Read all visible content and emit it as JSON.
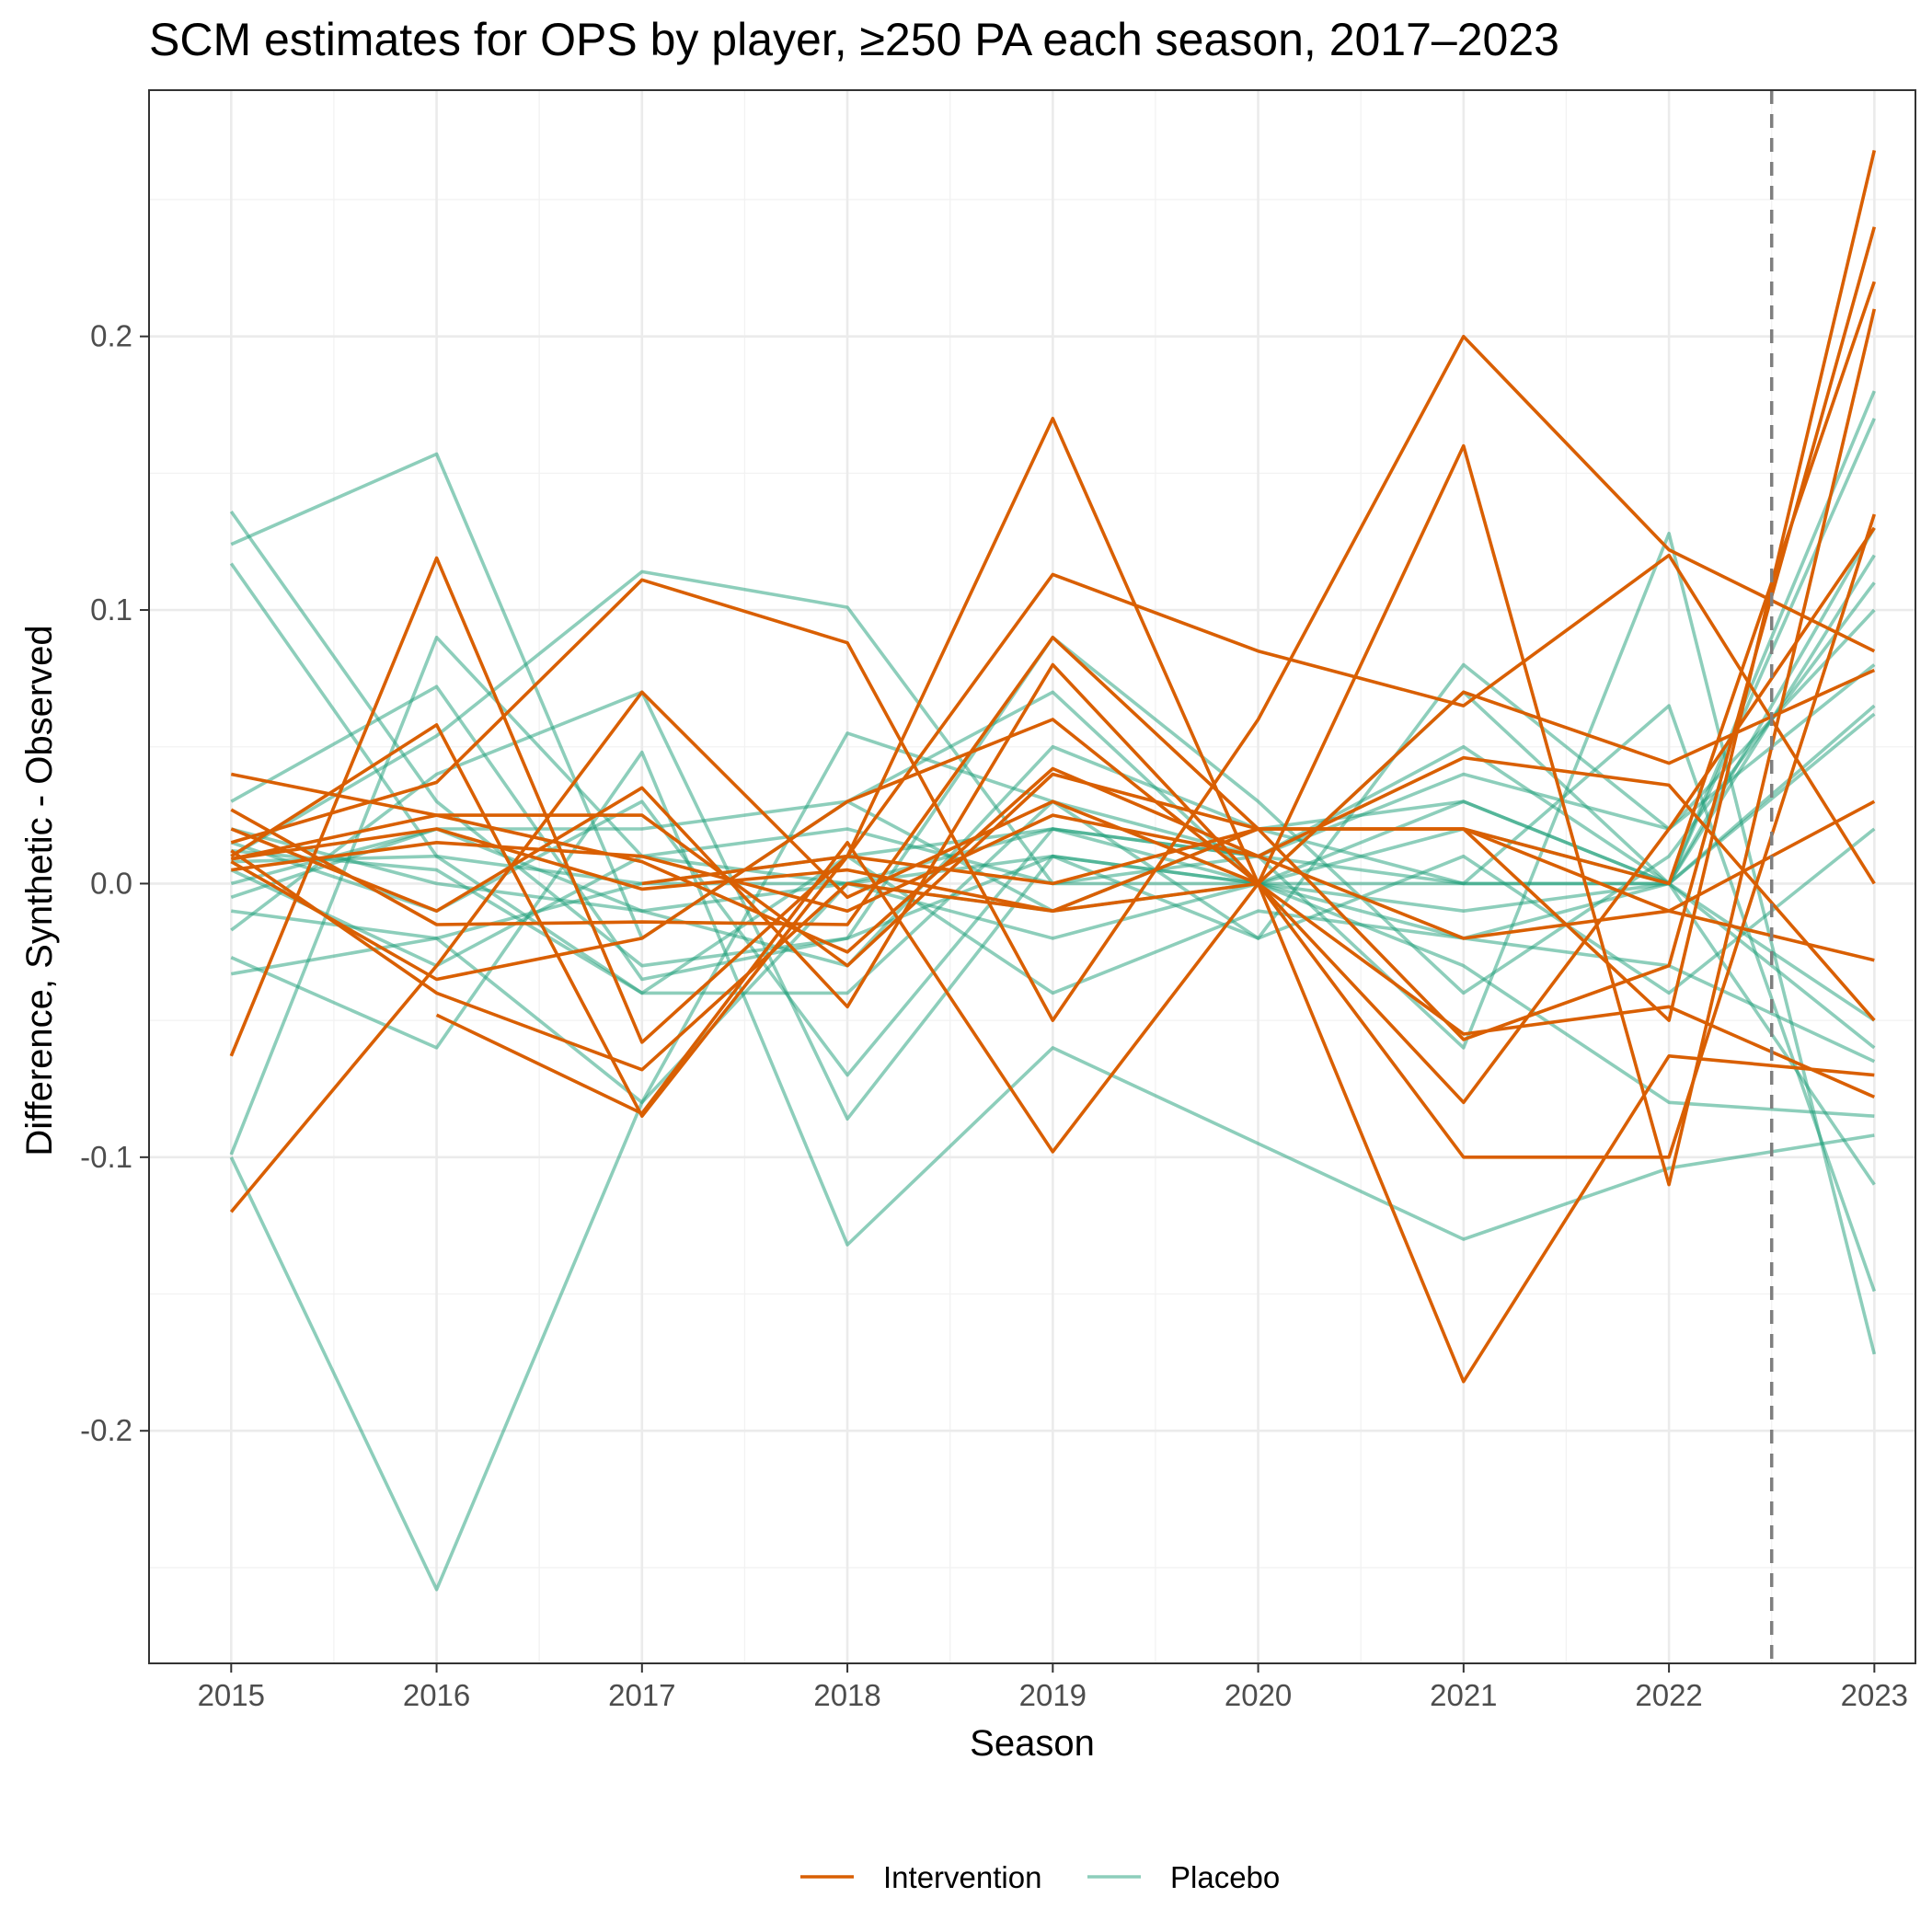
{
  "chart_data": {
    "type": "line",
    "title": "SCM estimates for OPS by player, ≥250 PA each season, 2017–2023",
    "xlabel": "Season",
    "ylabel": "Difference, Synthetic - Observed",
    "x": [
      2015,
      2016,
      2017,
      2018,
      2019,
      2020,
      2021,
      2022,
      2023
    ],
    "x_ticks": [
      "2015",
      "2016",
      "2017",
      "2018",
      "2019",
      "2020",
      "2021",
      "2022",
      "2023"
    ],
    "y_ticks": [
      {
        "value": -0.2,
        "label": "-0.2"
      },
      {
        "value": -0.1,
        "label": "-0.1"
      },
      {
        "value": 0.0,
        "label": "0.0"
      },
      {
        "value": 0.1,
        "label": "0.1"
      },
      {
        "value": 0.2,
        "label": "0.2"
      }
    ],
    "xlim": [
      2014.6,
      2023.2
    ],
    "ylim": [
      -0.285,
      0.29
    ],
    "grid": true,
    "reference_line": {
      "x": 2022.5,
      "style": "dashed"
    },
    "legend": {
      "position": "bottom",
      "entries": [
        {
          "label": "Intervention",
          "color": "#d95f02"
        },
        {
          "label": "Placebo",
          "color": "#1b9e77"
        }
      ]
    },
    "series": [
      {
        "group": "Placebo",
        "values": [
          0.136,
          0.03,
          -0.03,
          -0.02,
          0.01,
          0.0,
          -0.02,
          0.0,
          -0.05
        ]
      },
      {
        "group": "Placebo",
        "values": [
          0.124,
          0.157,
          -0.02,
          0.03,
          -0.01,
          0.02,
          0.0,
          0.0,
          0.12
        ]
      },
      {
        "group": "Placebo",
        "values": [
          0.117,
          0.01,
          -0.04,
          0.01,
          0.02,
          0.01,
          0.05,
          0.0,
          0.18
        ]
      },
      {
        "group": "Placebo",
        "values": [
          -0.1,
          -0.258,
          -0.08,
          0.0,
          -0.01,
          0.0,
          0.03,
          0.0,
          0.17
        ]
      },
      {
        "group": "Placebo",
        "values": [
          -0.099,
          0.09,
          0.01,
          0.0,
          0.02,
          0.0,
          0.02,
          0.0,
          0.13
        ]
      },
      {
        "group": "Placebo",
        "values": [
          0.03,
          0.072,
          -0.035,
          -0.02,
          0.09,
          0.03,
          -0.04,
          0.01,
          0.11
        ]
      },
      {
        "group": "Placebo",
        "values": [
          0.01,
          0.054,
          0.114,
          0.101,
          0.0,
          0.0,
          0.07,
          0.0,
          -0.06
        ]
      },
      {
        "group": "Placebo",
        "values": [
          -0.017,
          0.04,
          0.07,
          -0.086,
          0.01,
          -0.02,
          0.08,
          0.02,
          0.08
        ]
      },
      {
        "group": "Placebo",
        "values": [
          -0.027,
          -0.06,
          0.048,
          -0.132,
          -0.06,
          -0.095,
          -0.13,
          -0.104,
          -0.092
        ]
      },
      {
        "group": "Placebo",
        "values": [
          -0.033,
          -0.02,
          -0.08,
          0.055,
          0.03,
          0.01,
          -0.06,
          0.128,
          -0.172
        ]
      },
      {
        "group": "Placebo",
        "values": [
          0.0,
          0.02,
          0.02,
          0.03,
          0.07,
          0.0,
          0.0,
          0.065,
          -0.149
        ]
      },
      {
        "group": "Placebo",
        "values": [
          0.008,
          0.01,
          0.0,
          0.0,
          -0.02,
          0.0,
          -0.01,
          0.0,
          0.062
        ]
      },
      {
        "group": "Placebo",
        "values": [
          0.02,
          0.0,
          -0.01,
          -0.03,
          0.05,
          0.02,
          0.03,
          0.0,
          0.065
        ]
      },
      {
        "group": "Placebo",
        "values": [
          -0.01,
          -0.02,
          0.0,
          0.01,
          -0.04,
          -0.01,
          -0.02,
          -0.03,
          -0.065
        ]
      },
      {
        "group": "Placebo",
        "values": [
          0.005,
          -0.03,
          0.01,
          0.02,
          0.0,
          0.01,
          0.0,
          0.0,
          -0.11
        ]
      },
      {
        "group": "Placebo",
        "values": [
          0.012,
          0.005,
          -0.04,
          -0.04,
          0.03,
          -0.02,
          0.01,
          -0.04,
          0.02
        ]
      },
      {
        "group": "Placebo",
        "values": [
          -0.005,
          0.02,
          -0.01,
          0.0,
          0.01,
          0.0,
          -0.03,
          -0.08,
          -0.085
        ]
      },
      {
        "group": "Placebo",
        "values": [
          0.015,
          -0.01,
          0.03,
          -0.07,
          0.02,
          0.01,
          0.04,
          0.02,
          0.1
        ]
      },
      {
        "group": "Intervention",
        "values": [
          0.04,
          0.025,
          0.025,
          -0.03,
          0.04,
          0.02,
          0.02,
          -0.05,
          0.268
        ]
      },
      {
        "group": "Intervention",
        "values": [
          0.027,
          -0.015,
          -0.014,
          -0.015,
          0.09,
          0.02,
          -0.057,
          -0.03,
          0.24
        ]
      },
      {
        "group": "Intervention",
        "values": [
          -0.063,
          0.119,
          -0.058,
          0.01,
          0.0,
          0.02,
          0.02,
          0.0,
          0.22
        ]
      },
      {
        "group": "Intervention",
        "values": [
          0.01,
          0.058,
          -0.085,
          0.01,
          0.17,
          0.0,
          0.16,
          -0.11,
          0.21
        ]
      },
      {
        "group": "Intervention",
        "values": [
          0.015,
          0.037,
          0.111,
          0.088,
          -0.05,
          0.06,
          0.2,
          0.122,
          0.085
        ]
      },
      {
        "group": "Intervention",
        "values": [
          -0.12,
          -0.03,
          0.07,
          -0.005,
          0.03,
          0.0,
          -0.08,
          0.02,
          0.13
        ]
      },
      {
        "group": "Intervention",
        "values": [
          0.008,
          -0.035,
          -0.02,
          0.03,
          0.06,
          0.0,
          0.07,
          0.044,
          0.078
        ]
      },
      {
        "group": "Intervention",
        "values": [
          0.012,
          -0.04,
          -0.068,
          0.0,
          -0.01,
          0.0,
          -0.1,
          -0.1,
          0.135
        ]
      },
      {
        "group": "Intervention",
        "values": [
          0.02,
          -0.01,
          0.035,
          -0.045,
          0.08,
          0.0,
          -0.055,
          -0.045,
          -0.078
        ]
      },
      {
        "group": "Intervention",
        "values": [
          null,
          -0.048,
          -0.084,
          0.015,
          -0.098,
          0.0,
          -0.182,
          -0.063,
          -0.07
        ]
      },
      {
        "group": "Intervention",
        "values": [
          null,
          null,
          0.0,
          0.01,
          0.113,
          0.085,
          0.065,
          0.12,
          0.0
        ]
      },
      {
        "group": "Intervention",
        "values": [
          0.009,
          0.025,
          0.008,
          -0.025,
          0.042,
          0.01,
          0.046,
          0.036,
          -0.05
        ]
      },
      {
        "group": "Intervention",
        "values": [
          0.009,
          0.02,
          -0.002,
          0.005,
          -0.01,
          0.02,
          0.02,
          -0.01,
          0.03
        ]
      },
      {
        "group": "Intervention",
        "values": [
          0.005,
          0.015,
          0.01,
          -0.01,
          0.025,
          0.01,
          -0.02,
          -0.01,
          -0.028
        ]
      }
    ]
  }
}
